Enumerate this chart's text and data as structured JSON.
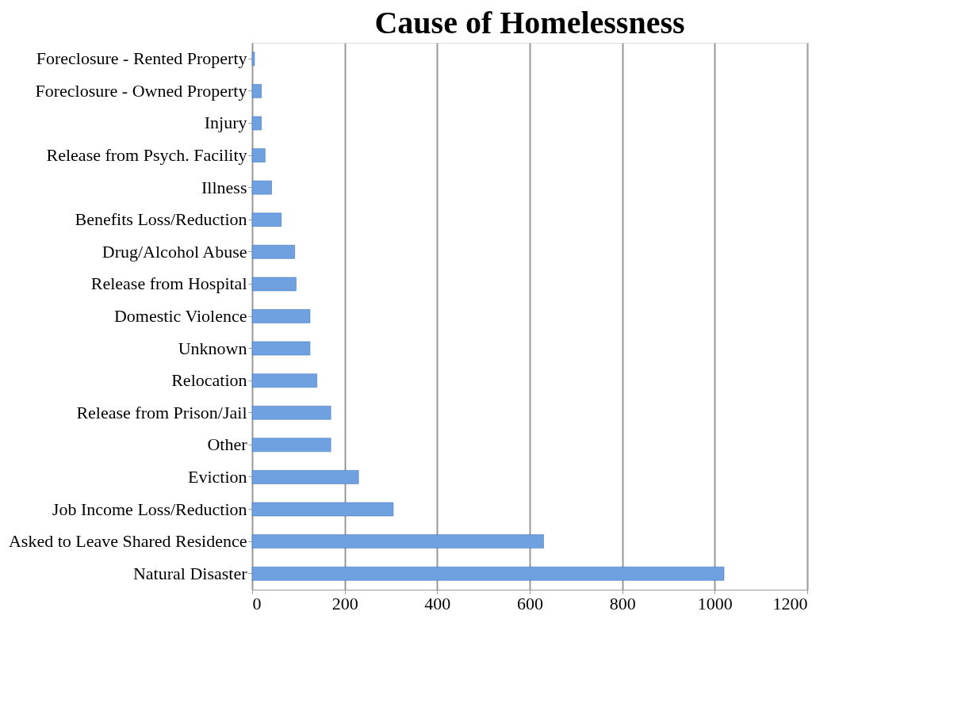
{
  "chart_data": {
    "type": "bar",
    "orientation": "horizontal",
    "title": "Cause of Homelessness",
    "categories": [
      "Foreclosure - Rented Property",
      "Foreclosure - Owned Property",
      "Injury",
      "Release from Psych. Facility",
      "Illness",
      "Benefits Loss/Reduction",
      "Drug/Alcohol Abuse",
      "Release from Hospital",
      "Domestic Violence",
      "Unknown",
      "Relocation",
      "Release from Prison/Jail",
      "Other",
      "Eviction",
      "Job Income Loss/Reduction",
      "Asked to Leave Shared Residence",
      "Natural Disaster"
    ],
    "values": [
      5,
      20,
      20,
      28,
      42,
      63,
      92,
      95,
      125,
      125,
      140,
      170,
      170,
      230,
      305,
      630,
      1020
    ],
    "color": "#6fa0e0",
    "xlim": [
      0,
      1200
    ],
    "xticks": [
      0,
      200,
      400,
      600,
      800,
      1000,
      1200
    ],
    "grid": "x"
  }
}
